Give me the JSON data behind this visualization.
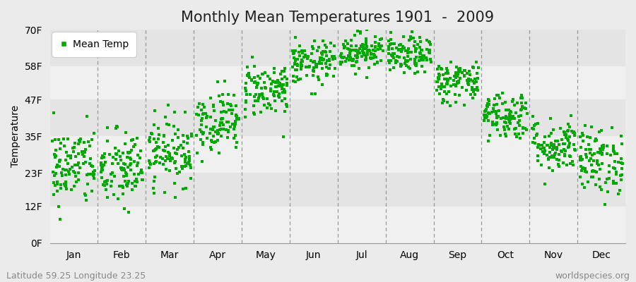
{
  "title": "Monthly Mean Temperatures 1901  -  2009",
  "ylabel": "Temperature",
  "subtitle_left": "Latitude 59.25 Longitude 23.25",
  "subtitle_right": "worldspecies.org",
  "legend_label": "Mean Temp",
  "ytick_labels": [
    "0F",
    "12F",
    "23F",
    "35F",
    "47F",
    "58F",
    "70F"
  ],
  "ytick_values": [
    0,
    12,
    23,
    35,
    47,
    58,
    70
  ],
  "ylim": [
    0,
    70
  ],
  "months": [
    "Jan",
    "Feb",
    "Mar",
    "Apr",
    "May",
    "Jun",
    "Jul",
    "Aug",
    "Sep",
    "Oct",
    "Nov",
    "Dec"
  ],
  "month_mean_temps_f": [
    25.0,
    24.0,
    30.0,
    40.0,
    50.5,
    59.0,
    63.0,
    61.5,
    53.0,
    42.0,
    32.0,
    27.0
  ],
  "month_std_temps_f": [
    6.5,
    6.5,
    5.5,
    5.0,
    4.5,
    3.5,
    3.0,
    3.0,
    3.5,
    4.0,
    4.5,
    5.5
  ],
  "n_years": 109,
  "dot_color": "#00AA00",
  "dot_size": 6,
  "bg_color": "#EBEBEB",
  "band_colors": [
    "#F0F0F0",
    "#E4E4E4"
  ],
  "vline_color": "#999999",
  "title_fontsize": 15,
  "axis_label_fontsize": 10,
  "tick_fontsize": 10,
  "subtitle_fontsize": 9
}
